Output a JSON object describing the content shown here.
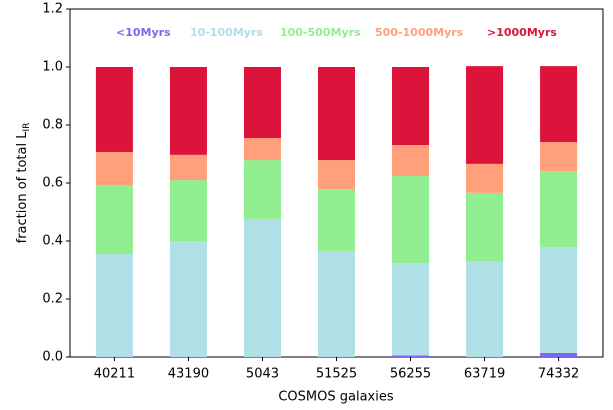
{
  "chart_data": {
    "type": "stacked_bar",
    "xlabel": "COSMOS galaxies",
    "ylabel": {
      "text": "fraction of total L",
      "subscript": "IR"
    },
    "categories": [
      "40211",
      "43190",
      "5043",
      "51525",
      "56255",
      "63719",
      "74332"
    ],
    "series": [
      {
        "name": "<10Myrs",
        "color": "#7b68ee",
        "values": [
          0,
          0,
          0,
          0,
          0.005,
          0,
          0.014
        ]
      },
      {
        "name": "10-100Myrs",
        "color": "#b0e0e6",
        "values": [
          0.355,
          0.4,
          0.476,
          0.366,
          0.319,
          0.331,
          0.365
        ]
      },
      {
        "name": "100-500Myrs",
        "color": "#90ee90",
        "values": [
          0.238,
          0.21,
          0.203,
          0.213,
          0.3,
          0.235,
          0.262
        ]
      },
      {
        "name": "500-1000Myrs",
        "color": "#ffa07a",
        "values": [
          0.114,
          0.087,
          0.076,
          0.1,
          0.107,
          0.1,
          0.1
        ]
      },
      {
        "name": ">1000Myrs",
        "color": "#dc143c",
        "values": [
          0.293,
          0.303,
          0.245,
          0.321,
          0.269,
          0.337,
          0.262
        ]
      }
    ],
    "ylim": [
      0,
      1.2
    ],
    "yticks": [
      {
        "value": 0,
        "label": "0.0"
      },
      0.2,
      0.4,
      0.6,
      0.8,
      {
        "value": 1,
        "label": "1.0"
      },
      1.2
    ],
    "legend": "top"
  }
}
